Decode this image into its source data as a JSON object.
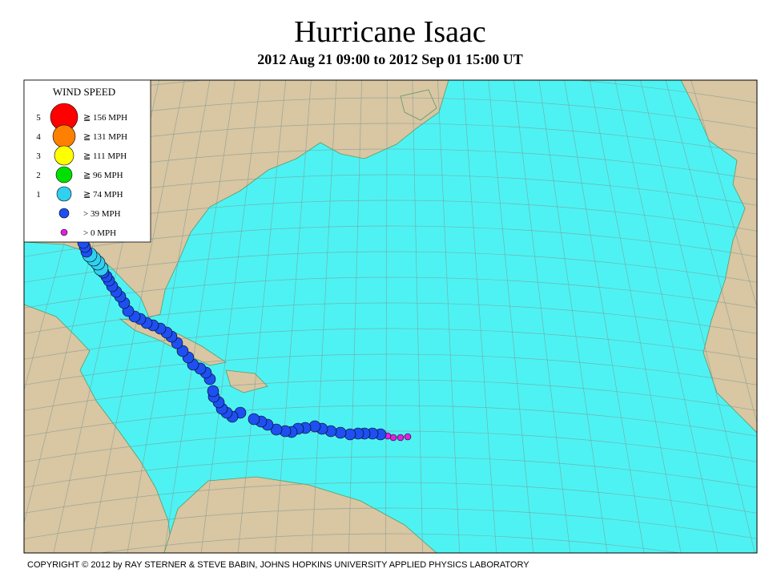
{
  "header": {
    "title": "Hurricane Isaac",
    "subtitle": "2012 Aug 21 09:00 to 2012 Sep 01 15:00 UT"
  },
  "legend": {
    "title": "WIND SPEED",
    "items": [
      {
        "category": "5",
        "label": "≧ 156 MPH",
        "color": "#ff0000"
      },
      {
        "category": "4",
        "label": "≧ 131 MPH",
        "color": "#ff8000"
      },
      {
        "category": "3",
        "label": "≧ 111 MPH",
        "color": "#ffff00"
      },
      {
        "category": "2",
        "label": "≧ 96 MPH",
        "color": "#00e000"
      },
      {
        "category": "1",
        "label": "≧ 74 MPH",
        "color": "#30d0f0"
      },
      {
        "label": "> 39 MPH",
        "color": "#1e4ff0"
      },
      {
        "label": "> 0 MPH",
        "color": "#e020e0"
      }
    ]
  },
  "footer": {
    "copyright": "COPYRIGHT © 2012 by RAY STERNER & STEVE BABIN, JOHNS HOPKINS UNIVERSITY APPLIED PHYSICS LABORATORY"
  }
}
